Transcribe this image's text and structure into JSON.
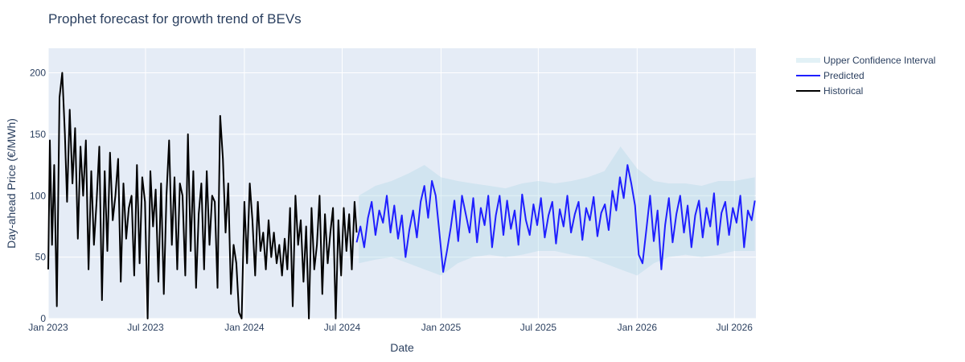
{
  "chart_data": {
    "type": "line",
    "title": "Prophet forecast for growth trend of BEVs",
    "xlabel": "Date",
    "ylabel": "Day-ahead Price (€/MWh)",
    "xlim": [
      "2023-01-01",
      "2026-08-10"
    ],
    "ylim": [
      0,
      220
    ],
    "x_tick_labels": [
      "Jan 2023",
      "Jul 2023",
      "Jan 2024",
      "Jul 2024",
      "Jan 2025",
      "Jul 2025",
      "Jan 2026",
      "Jul 2026"
    ],
    "y_tick_labels": [
      "0",
      "50",
      "100",
      "150",
      "200"
    ],
    "grid": true,
    "legend_placement": "right-top",
    "series": [
      {
        "name": "Upper Confidence Interval",
        "type": "area",
        "color": "#add8e6",
        "x": [
          "2024-08-01",
          "2024-09-01",
          "2024-10-01",
          "2024-11-01",
          "2024-12-01",
          "2025-01-01",
          "2025-02-01",
          "2025-03-01",
          "2025-04-01",
          "2025-05-01",
          "2025-06-01",
          "2025-07-01",
          "2025-08-01",
          "2025-09-01",
          "2025-10-01",
          "2025-11-01",
          "2025-12-01",
          "2026-01-01",
          "2026-02-01",
          "2026-03-01",
          "2026-04-01",
          "2026-05-01",
          "2026-06-01",
          "2026-07-01",
          "2026-08-08"
        ],
        "upper": [
          100,
          108,
          112,
          118,
          125,
          115,
          112,
          110,
          108,
          106,
          110,
          112,
          110,
          112,
          115,
          120,
          140,
          122,
          112,
          110,
          110,
          108,
          112,
          112,
          115
        ],
        "lower": [
          45,
          48,
          50,
          45,
          40,
          35,
          45,
          50,
          52,
          50,
          52,
          55,
          55,
          52,
          50,
          45,
          40,
          35,
          45,
          50,
          52,
          50,
          52,
          55,
          55
        ]
      },
      {
        "name": "Predicted",
        "type": "line",
        "color": "#1f1fff",
        "x": [
          "2024-07-28",
          "2024-08-04",
          "2024-08-11",
          "2024-08-18",
          "2024-08-25",
          "2024-09-01",
          "2024-09-08",
          "2024-09-15",
          "2024-09-22",
          "2024-09-29",
          "2024-10-06",
          "2024-10-13",
          "2024-10-20",
          "2024-10-27",
          "2024-11-03",
          "2024-11-10",
          "2024-11-17",
          "2024-11-24",
          "2024-12-01",
          "2024-12-08",
          "2024-12-15",
          "2024-12-22",
          "2024-12-29",
          "2025-01-05",
          "2025-01-12",
          "2025-01-19",
          "2025-01-26",
          "2025-02-02",
          "2025-02-09",
          "2025-02-16",
          "2025-02-23",
          "2025-03-02",
          "2025-03-09",
          "2025-03-16",
          "2025-03-23",
          "2025-03-30",
          "2025-04-06",
          "2025-04-13",
          "2025-04-20",
          "2025-04-27",
          "2025-05-04",
          "2025-05-11",
          "2025-05-18",
          "2025-05-25",
          "2025-06-01",
          "2025-06-08",
          "2025-06-15",
          "2025-06-22",
          "2025-06-29",
          "2025-07-06",
          "2025-07-13",
          "2025-07-20",
          "2025-07-27",
          "2025-08-03",
          "2025-08-10",
          "2025-08-17",
          "2025-08-24",
          "2025-08-31",
          "2025-09-07",
          "2025-09-14",
          "2025-09-21",
          "2025-09-28",
          "2025-10-05",
          "2025-10-12",
          "2025-10-19",
          "2025-10-26",
          "2025-11-02",
          "2025-11-09",
          "2025-11-16",
          "2025-11-23",
          "2025-11-30",
          "2025-12-07",
          "2025-12-14",
          "2025-12-21",
          "2025-12-28",
          "2026-01-04",
          "2026-01-11",
          "2026-01-18",
          "2026-01-25",
          "2026-02-01",
          "2026-02-08",
          "2026-02-15",
          "2026-02-22",
          "2026-03-01",
          "2026-03-08",
          "2026-03-15",
          "2026-03-22",
          "2026-03-29",
          "2026-04-05",
          "2026-04-12",
          "2026-04-19",
          "2026-04-26",
          "2026-05-03",
          "2026-05-10",
          "2026-05-17",
          "2026-05-24",
          "2026-05-31",
          "2026-06-07",
          "2026-06-14",
          "2026-06-21",
          "2026-06-28",
          "2026-07-05",
          "2026-07-12",
          "2026-07-19",
          "2026-07-26",
          "2026-08-02",
          "2026-08-08"
        ],
        "y": [
          62,
          75,
          58,
          82,
          95,
          68,
          88,
          78,
          100,
          70,
          92,
          65,
          84,
          50,
          72,
          88,
          66,
          95,
          108,
          82,
          112,
          100,
          70,
          38,
          55,
          74,
          96,
          63,
          100,
          85,
          70,
          98,
          62,
          90,
          76,
          100,
          58,
          84,
          100,
          68,
          96,
          73,
          88,
          60,
          101,
          80,
          68,
          93,
          76,
          98,
          66,
          84,
          95,
          61,
          89,
          75,
          100,
          70,
          85,
          95,
          64,
          90,
          80,
          99,
          67,
          86,
          93,
          72,
          104,
          88,
          115,
          98,
          125,
          110,
          92,
          52,
          45,
          72,
          100,
          63,
          88,
          40,
          76,
          98,
          62,
          85,
          100,
          70,
          92,
          58,
          84,
          96,
          66,
          90,
          75,
          102,
          60,
          86,
          95,
          68,
          90,
          78,
          100,
          58,
          88,
          80,
          96
        ],
        "y_extra_points": []
      },
      {
        "name": "Historical",
        "type": "line",
        "color": "#000000",
        "x": [
          "2023-01-01",
          "2023-01-04",
          "2023-01-08",
          "2023-01-12",
          "2023-01-17",
          "2023-01-22",
          "2023-01-27",
          "2023-02-01",
          "2023-02-05",
          "2023-02-10",
          "2023-02-15",
          "2023-02-20",
          "2023-02-25",
          "2023-03-02",
          "2023-03-07",
          "2023-03-12",
          "2023-03-17",
          "2023-03-22",
          "2023-03-27",
          "2023-04-01",
          "2023-04-06",
          "2023-04-11",
          "2023-04-16",
          "2023-04-21",
          "2023-04-26",
          "2023-05-01",
          "2023-05-06",
          "2023-05-11",
          "2023-05-16",
          "2023-05-21",
          "2023-05-26",
          "2023-05-31",
          "2023-06-05",
          "2023-06-10",
          "2023-06-15",
          "2023-06-20",
          "2023-06-25",
          "2023-06-30",
          "2023-07-05",
          "2023-07-10",
          "2023-07-15",
          "2023-07-20",
          "2023-07-25",
          "2023-07-30",
          "2023-08-04",
          "2023-08-09",
          "2023-08-14",
          "2023-08-19",
          "2023-08-24",
          "2023-08-29",
          "2023-09-03",
          "2023-09-08",
          "2023-09-13",
          "2023-09-18",
          "2023-09-23",
          "2023-09-28",
          "2023-10-03",
          "2023-10-08",
          "2023-10-13",
          "2023-10-18",
          "2023-10-23",
          "2023-10-28",
          "2023-11-02",
          "2023-11-07",
          "2023-11-12",
          "2023-11-17",
          "2023-11-22",
          "2023-11-27",
          "2023-12-02",
          "2023-12-07",
          "2023-12-12",
          "2023-12-17",
          "2023-12-22",
          "2023-12-27",
          "2024-01-01",
          "2024-01-06",
          "2024-01-11",
          "2024-01-16",
          "2024-01-21",
          "2024-01-26",
          "2024-01-31",
          "2024-02-05",
          "2024-02-10",
          "2024-02-15",
          "2024-02-20",
          "2024-02-25",
          "2024-03-01",
          "2024-03-06",
          "2024-03-11",
          "2024-03-16",
          "2024-03-21",
          "2024-03-26",
          "2024-03-31",
          "2024-04-05",
          "2024-04-10",
          "2024-04-15",
          "2024-04-20",
          "2024-04-25",
          "2024-04-30",
          "2024-05-05",
          "2024-05-10",
          "2024-05-15",
          "2024-05-20",
          "2024-05-25",
          "2024-05-30",
          "2024-06-04",
          "2024-06-09",
          "2024-06-14",
          "2024-06-19",
          "2024-06-24",
          "2024-06-29",
          "2024-07-04",
          "2024-07-09",
          "2024-07-14",
          "2024-07-19",
          "2024-07-24",
          "2024-07-28"
        ],
        "y": [
          40,
          145,
          60,
          125,
          10,
          180,
          200,
          150,
          95,
          170,
          110,
          155,
          65,
          140,
          100,
          145,
          40,
          120,
          60,
          95,
          140,
          15,
          120,
          55,
          135,
          80,
          100,
          130,
          30,
          110,
          65,
          90,
          100,
          35,
          125,
          45,
          115,
          95,
          0,
          120,
          75,
          105,
          30,
          110,
          20,
          100,
          145,
          60,
          115,
          40,
          110,
          100,
          35,
          150,
          55,
          120,
          25,
          85,
          110,
          40,
          120,
          60,
          100,
          95,
          25,
          165,
          130,
          70,
          110,
          20,
          60,
          45,
          5,
          0,
          95,
          45,
          110,
          80,
          35,
          95,
          55,
          70,
          40,
          80,
          50,
          70,
          45,
          60,
          35,
          65,
          40,
          90,
          10,
          100,
          60,
          80,
          30,
          75,
          0,
          90,
          40,
          60,
          100,
          20,
          85,
          45,
          70,
          90,
          0,
          80,
          35,
          90,
          55,
          85,
          40,
          95,
          70
        ],
        "y_extra_points": []
      }
    ]
  }
}
